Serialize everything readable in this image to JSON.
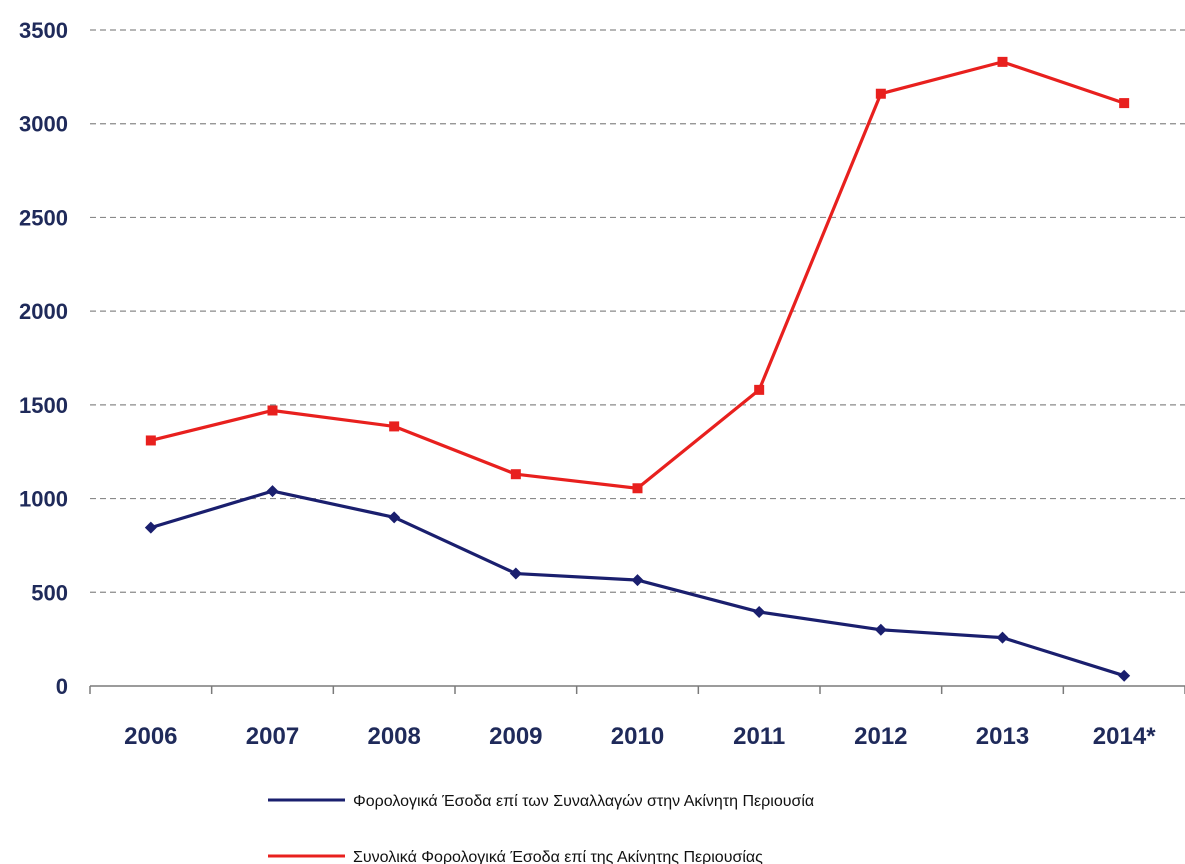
{
  "chart_data": {
    "type": "line",
    "categories": [
      "2006",
      "2007",
      "2008",
      "2009",
      "2010",
      "2011",
      "2012",
      "2013",
      "2014*"
    ],
    "series": [
      {
        "name": "Φορολογικά Έσοδα επί των Συναλλαγών στην Ακίνητη Περιουσία",
        "values": [
          845,
          1040,
          900,
          600,
          565,
          395,
          300,
          258,
          55
        ],
        "color": "#1a1f6e",
        "marker": "diamond"
      },
      {
        "name": "Συνολικά Φορολογικά Έσοδα επί της Ακίνητης Περιουσίας",
        "values": [
          1310,
          1470,
          1385,
          1130,
          1055,
          1580,
          3160,
          3330,
          3110
        ],
        "color": "#e8201e",
        "marker": "square"
      }
    ],
    "title": "",
    "xlabel": "",
    "ylabel": "",
    "ylim": [
      0,
      3500
    ],
    "yticks": [
      "0",
      "500",
      "1000",
      "1500",
      "2000",
      "2500",
      "3000",
      "3500"
    ],
    "grid": "horizontal-dashed",
    "legend_position": "bottom"
  }
}
